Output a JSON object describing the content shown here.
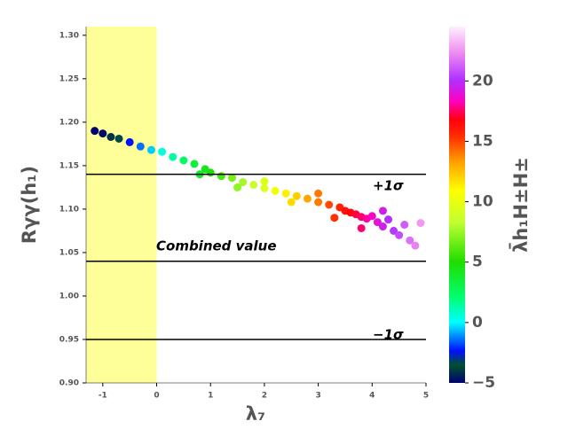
{
  "chart_data": {
    "type": "scatter",
    "x_label": "λ₇",
    "y_label": "Rγγ(h₁)",
    "colorbar_label": "λ̄h₁H±H±",
    "x": [
      -1.15,
      -1.0,
      -0.85,
      -0.7,
      -0.5,
      -0.3,
      -0.1,
      0.1,
      0.3,
      0.5,
      0.7,
      0.9,
      1.0,
      1.2,
      1.4,
      1.6,
      1.8,
      2.0,
      2.2,
      2.4,
      2.6,
      2.8,
      3.0,
      3.2,
      3.4,
      3.5,
      3.6,
      3.7,
      3.8,
      3.9,
      4.0,
      4.1,
      4.2,
      4.3,
      4.4,
      4.5,
      4.6,
      4.7,
      4.8,
      4.9,
      1.5,
      2.5,
      3.3,
      3.8,
      2.0,
      3.0,
      4.2,
      0.8
    ],
    "y": [
      1.19,
      1.187,
      1.183,
      1.181,
      1.177,
      1.172,
      1.168,
      1.166,
      1.16,
      1.156,
      1.152,
      1.146,
      1.142,
      1.138,
      1.136,
      1.131,
      1.128,
      1.124,
      1.121,
      1.118,
      1.115,
      1.112,
      1.108,
      1.105,
      1.102,
      1.098,
      1.096,
      1.094,
      1.091,
      1.089,
      1.092,
      1.085,
      1.08,
      1.088,
      1.075,
      1.07,
      1.082,
      1.064,
      1.058,
      1.084,
      1.125,
      1.108,
      1.09,
      1.078,
      1.132,
      1.118,
      1.098,
      1.14
    ],
    "color_values": [
      -5,
      -4.8,
      -4.1,
      -3.4,
      -2.4,
      -1.4,
      -0.5,
      0.5,
      1.4,
      2.4,
      3.4,
      4.3,
      4.8,
      5.9,
      6.8,
      7.7,
      8.6,
      9.5,
      10.4,
      11.3,
      12.2,
      13.1,
      14,
      14.9,
      15.8,
      16.3,
      16.7,
      17.2,
      17.6,
      18.1,
      18.5,
      19,
      19.4,
      19.9,
      20.3,
      20.8,
      21.2,
      21.7,
      22.1,
      22.6,
      7.3,
      11.8,
      15.4,
      17.6,
      9.5,
      14,
      19.4,
      3.8
    ],
    "xlim": [
      -1.31,
      5.0
    ],
    "xticks": [
      -1,
      0,
      1,
      2,
      3,
      4,
      5
    ],
    "ylim": [
      0.9,
      1.31
    ],
    "yticks": [
      {
        "value": 0.9,
        "label": "0.90"
      },
      0.95,
      {
        "value": 1.0,
        "label": "1.00"
      },
      1.05,
      {
        "value": 1.1,
        "label": "1.10"
      },
      1.15,
      {
        "value": 1.2,
        "label": "1.20"
      },
      1.25,
      {
        "value": 1.3,
        "label": "1.30"
      }
    ],
    "clim": [
      -5,
      24.5
    ],
    "cticks": [
      {
        "value": -5,
        "label": "−5"
      },
      0,
      5,
      10,
      15,
      20
    ],
    "hlines": [
      1.14,
      1.04,
      0.95
    ],
    "annotations": [
      "+1σ",
      "Combined value",
      "−1σ"
    ],
    "span": [
      -1.31,
      0
    ]
  }
}
